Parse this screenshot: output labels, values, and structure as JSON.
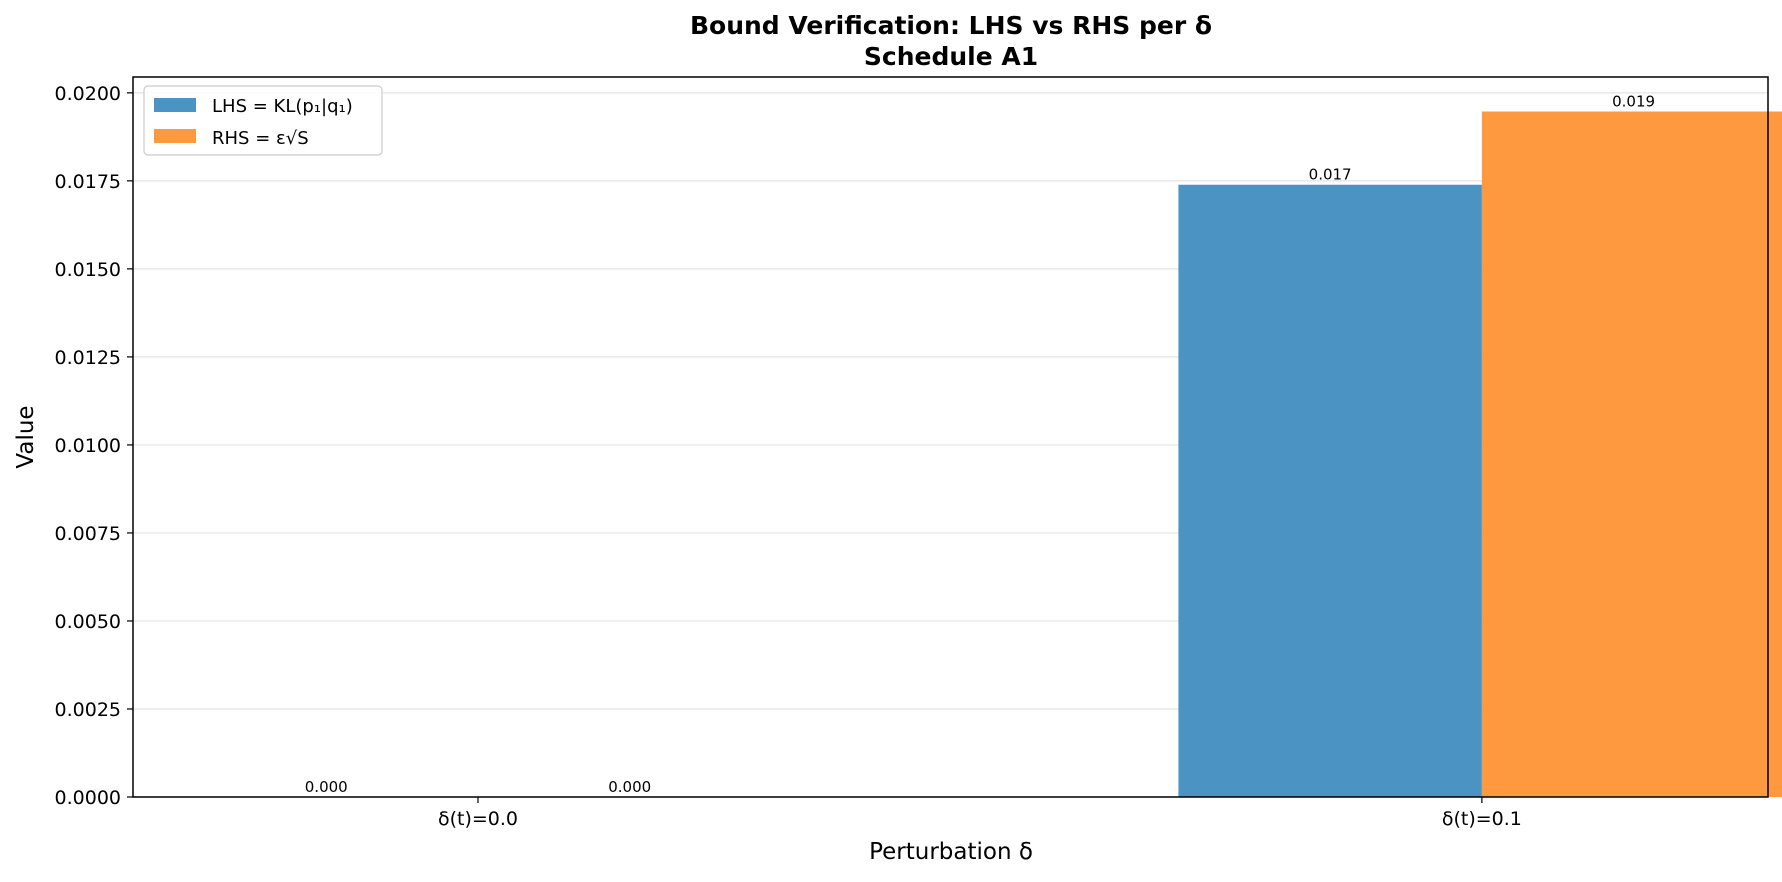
{
  "chart_data": {
    "type": "bar",
    "title": "Bound Verification: LHS vs RHS per δ",
    "subtitle": "Schedule A1",
    "xlabel": "Perturbation δ",
    "ylabel": "Value",
    "categories": [
      "δ(t)=0.0",
      "δ(t)=0.1"
    ],
    "series": [
      {
        "name": "LHS = KL(p₁|q₁)",
        "values": [
          0.0,
          0.01739
        ],
        "value_labels": [
          "0.000",
          "0.017"
        ],
        "color": "#4b93c3"
      },
      {
        "name": "RHS = ε√S",
        "values": [
          0.0,
          0.01947
        ],
        "value_labels": [
          "0.000",
          "0.019"
        ],
        "color": "#ff993f"
      }
    ],
    "ylim": [
      0,
      0.02045
    ],
    "yticks": [
      "0.0000",
      "0.0025",
      "0.0050",
      "0.0075",
      "0.0100",
      "0.0125",
      "0.0150",
      "0.0175",
      "0.0200"
    ],
    "grid": "horizontal",
    "legend_position": "top-left"
  }
}
